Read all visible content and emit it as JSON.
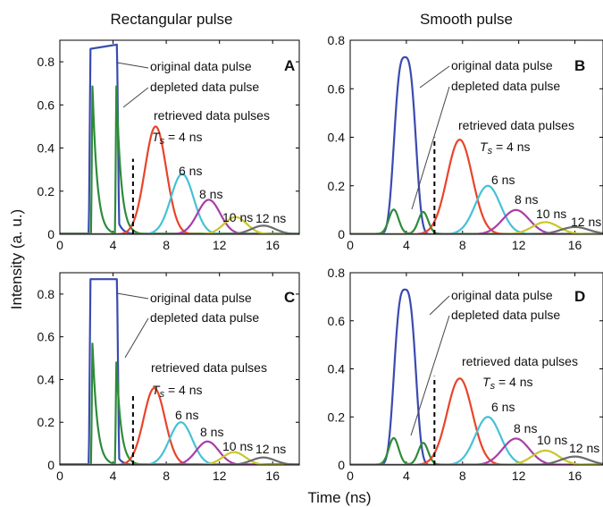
{
  "figure": {
    "col_titles": [
      "Rectangular pulse",
      "Smooth pulse"
    ],
    "ylabel": "Intensity (a. u.)",
    "xlabel": "Time (ns)"
  },
  "colors": {
    "original": "#3a4bb0",
    "depleted": "#2e8b3a",
    "ts4": "#e8442a",
    "ts6": "#45c1d6",
    "ts8": "#a83ea8",
    "ts10": "#c9c62c",
    "ts12": "#6b6b6b",
    "marker": "#000000"
  },
  "chart_data": [
    {
      "panel": "A",
      "type": "line",
      "xlim": [
        0,
        18
      ],
      "ylim": [
        0,
        0.9
      ],
      "xticks": [
        0,
        4,
        8,
        12,
        16
      ],
      "yticks": [
        0,
        0.2,
        0.4,
        0.6,
        0.8
      ],
      "annotations": {
        "original": "original data pulse",
        "depleted": "depleted data pulse",
        "retrieved": "retrieved data pulses",
        "ts_prefix": "T",
        "ts_sub": "s",
        "ts_first": " = 4 ns",
        "labels": [
          "6 ns",
          "8 ns",
          "10 ns",
          "12 ns"
        ]
      },
      "marker_x": 5.5,
      "marker_ytop": 0.35,
      "series": [
        {
          "key": "original",
          "shape": "rect",
          "start": 2.3,
          "end": 4.3,
          "top_start": 0.86,
          "top_end": 0.88,
          "tail": 0.05
        },
        {
          "key": "depleted",
          "shape": "spikes",
          "peaks": [
            {
              "x": 2.45,
              "y": 0.7
            },
            {
              "x": 4.25,
              "y": 0.7
            }
          ],
          "decay": 0.35
        },
        {
          "key": "ts4",
          "center": 7.2,
          "peak": 0.5,
          "sigma": 0.8,
          "label_x": 7.2
        },
        {
          "key": "ts6",
          "center": 9.2,
          "peak": 0.28,
          "sigma": 0.85
        },
        {
          "key": "ts8",
          "center": 11.2,
          "peak": 0.16,
          "sigma": 0.85
        },
        {
          "key": "ts10",
          "center": 13.2,
          "peak": 0.08,
          "sigma": 0.85
        },
        {
          "key": "ts12",
          "center": 15.3,
          "peak": 0.04,
          "sigma": 0.9
        }
      ]
    },
    {
      "panel": "B",
      "type": "line",
      "xlim": [
        0,
        18
      ],
      "ylim": [
        0,
        0.8
      ],
      "xticks": [
        0,
        4,
        8,
        12,
        16
      ],
      "yticks": [
        0,
        0.2,
        0.4,
        0.6,
        0.8
      ],
      "annotations": {
        "original": "original data pulse",
        "depleted": "depleted data pulse",
        "retrieved": "retrieved data pulses",
        "ts_prefix": "T",
        "ts_sub": "s",
        "ts_first": " = 4 ns",
        "labels": [
          "6 ns",
          "8 ns",
          "10 ns",
          "12 ns"
        ]
      },
      "marker_x": 6.0,
      "marker_ytop": 0.4,
      "series": [
        {
          "key": "original",
          "shape": "gauss",
          "center": 3.9,
          "peak": 0.73,
          "sigma": 0.72,
          "power": 3
        },
        {
          "key": "depleted",
          "shape": "bumps",
          "peaks": [
            {
              "x": 3.1,
              "y": 0.1
            },
            {
              "x": 5.2,
              "y": 0.09
            }
          ],
          "width": 0.35
        },
        {
          "key": "ts4",
          "center": 7.8,
          "peak": 0.39,
          "sigma": 0.9
        },
        {
          "key": "ts6",
          "center": 9.8,
          "peak": 0.2,
          "sigma": 0.9
        },
        {
          "key": "ts8",
          "center": 11.8,
          "peak": 0.1,
          "sigma": 0.95
        },
        {
          "key": "ts10",
          "center": 13.9,
          "peak": 0.05,
          "sigma": 0.95
        },
        {
          "key": "ts12",
          "center": 16.0,
          "peak": 0.03,
          "sigma": 1.0
        }
      ]
    },
    {
      "panel": "C",
      "type": "line",
      "xlim": [
        0,
        18
      ],
      "ylim": [
        0,
        0.9
      ],
      "xticks": [
        0,
        4,
        8,
        12,
        16
      ],
      "yticks": [
        0,
        0.2,
        0.4,
        0.6,
        0.8
      ],
      "annotations": {
        "original": "original data pulse",
        "depleted": "depleted data pulse",
        "retrieved": "retrieved data pulses",
        "ts_prefix": "T",
        "ts_sub": "s",
        "ts_first": " = 4 ns",
        "labels": [
          "6 ns",
          "8 ns",
          "10 ns",
          "12 ns"
        ]
      },
      "marker_x": 5.5,
      "marker_ytop": 0.33,
      "series": [
        {
          "key": "original",
          "shape": "rect",
          "start": 2.3,
          "end": 4.3,
          "top_start": 0.87,
          "top_end": 0.87,
          "tail": 0.03
        },
        {
          "key": "depleted",
          "shape": "spikes",
          "peaks": [
            {
              "x": 2.45,
              "y": 0.58
            },
            {
              "x": 4.25,
              "y": 0.49
            }
          ],
          "decay": 0.35
        },
        {
          "key": "ts4",
          "center": 7.1,
          "peak": 0.36,
          "sigma": 0.8
        },
        {
          "key": "ts6",
          "center": 9.1,
          "peak": 0.2,
          "sigma": 0.85
        },
        {
          "key": "ts8",
          "center": 11.1,
          "peak": 0.11,
          "sigma": 0.85
        },
        {
          "key": "ts10",
          "center": 13.1,
          "peak": 0.06,
          "sigma": 0.85
        },
        {
          "key": "ts12",
          "center": 15.3,
          "peak": 0.035,
          "sigma": 0.9
        }
      ]
    },
    {
      "panel": "D",
      "type": "line",
      "xlim": [
        0,
        18
      ],
      "ylim": [
        0,
        0.8
      ],
      "xticks": [
        0,
        4,
        8,
        12,
        16
      ],
      "yticks": [
        0,
        0.2,
        0.4,
        0.6,
        0.8
      ],
      "annotations": {
        "original": "original data pulse",
        "depleted": "depleted data pulse",
        "retrieved": "retrieved data pulses",
        "ts_prefix": "T",
        "ts_sub": "s",
        "ts_first": " = 4 ns",
        "labels": [
          "6 ns",
          "8 ns",
          "10 ns",
          "12 ns"
        ]
      },
      "marker_x": 6.0,
      "marker_ytop": 0.37,
      "series": [
        {
          "key": "original",
          "shape": "gauss",
          "center": 3.9,
          "peak": 0.73,
          "sigma": 0.72,
          "power": 3
        },
        {
          "key": "depleted",
          "shape": "bumps",
          "peaks": [
            {
              "x": 3.1,
              "y": 0.11
            },
            {
              "x": 5.2,
              "y": 0.09
            }
          ],
          "width": 0.35
        },
        {
          "key": "ts4",
          "center": 7.8,
          "peak": 0.36,
          "sigma": 0.9
        },
        {
          "key": "ts6",
          "center": 9.8,
          "peak": 0.2,
          "sigma": 0.9
        },
        {
          "key": "ts8",
          "center": 11.8,
          "peak": 0.11,
          "sigma": 0.95
        },
        {
          "key": "ts10",
          "center": 13.9,
          "peak": 0.06,
          "sigma": 0.95
        },
        {
          "key": "ts12",
          "center": 16.0,
          "peak": 0.035,
          "sigma": 1.0
        }
      ]
    }
  ]
}
